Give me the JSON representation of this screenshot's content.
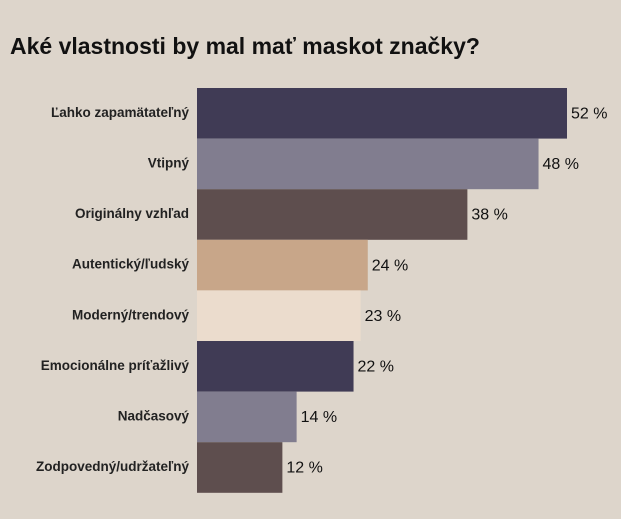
{
  "chart_data": {
    "type": "bar",
    "orientation": "horizontal",
    "title": "Aké vlastnosti by mal mať maskot značky?",
    "categories": [
      "Ľahko zapamätateľný",
      "Vtipný",
      "Originálny vzhľad",
      "Autentický/ľudský",
      "Moderný/trendový",
      "Emocionálne príťažlivý",
      "Nadčasový",
      "Zodpovedný/udržateľný"
    ],
    "values": [
      52,
      48,
      38,
      24,
      23,
      22,
      14,
      12
    ],
    "value_labels": [
      "52 %",
      "48 %",
      "38 %",
      "24 %",
      "23 %",
      "22 %",
      "14 %",
      "12 %"
    ],
    "colors": [
      "#403b55",
      "#817d8f",
      "#5e4e4e",
      "#c8a689",
      "#ebdccd",
      "#403b55",
      "#817d8f",
      "#5e4e4e"
    ]
  }
}
